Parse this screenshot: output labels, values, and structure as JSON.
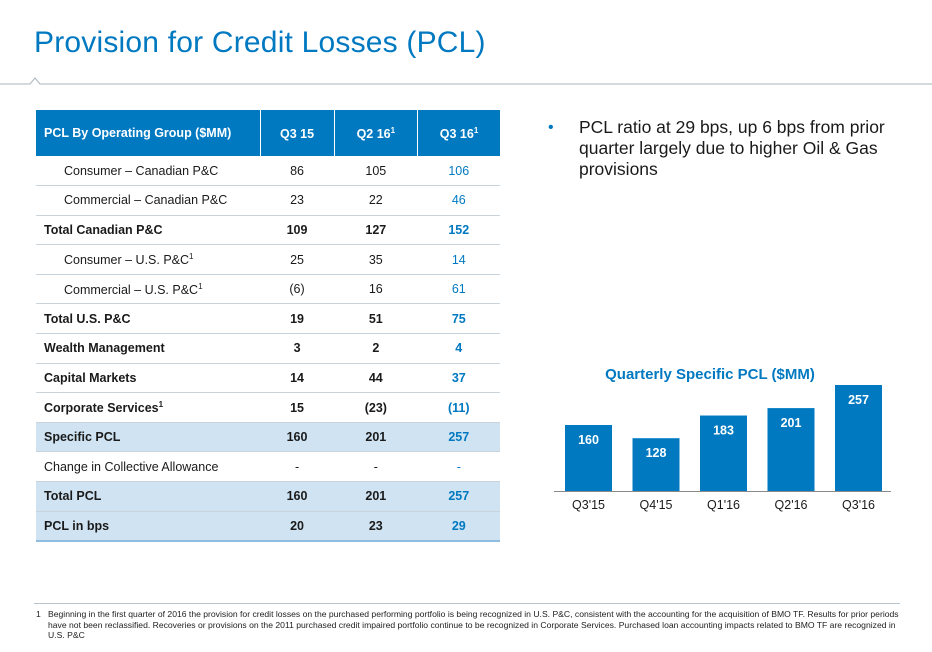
{
  "header": {
    "title": "Provision for Credit Losses (PCL)"
  },
  "table": {
    "header_label": "PCL By Operating Group ($MM)",
    "columns": [
      {
        "text": "Q3 15",
        "sup": ""
      },
      {
        "text": "Q2 16",
        "sup": "1"
      },
      {
        "text": "Q3 16",
        "sup": "1"
      }
    ],
    "rows": [
      {
        "label": "Consumer – Canadian P&C",
        "sup": "",
        "values": [
          "86",
          "105",
          "106"
        ],
        "bold": false,
        "indent": true,
        "shade": false
      },
      {
        "label": "Commercial – Canadian P&C",
        "sup": "",
        "values": [
          "23",
          "22",
          "46"
        ],
        "bold": false,
        "indent": true,
        "shade": false
      },
      {
        "label": "Total Canadian P&C",
        "sup": "",
        "values": [
          "109",
          "127",
          "152"
        ],
        "bold": true,
        "indent": false,
        "shade": false
      },
      {
        "label": "Consumer – U.S. P&C",
        "sup": "1",
        "values": [
          "25",
          "35",
          "14"
        ],
        "bold": false,
        "indent": true,
        "shade": false
      },
      {
        "label": "Commercial – U.S. P&C",
        "sup": "1",
        "values": [
          "(6)",
          "16",
          "61"
        ],
        "bold": false,
        "indent": true,
        "shade": false
      },
      {
        "label": "Total U.S. P&C",
        "sup": "",
        "values": [
          "19",
          "51",
          "75"
        ],
        "bold": true,
        "indent": false,
        "shade": false
      },
      {
        "label": "Wealth Management",
        "sup": "",
        "values": [
          "3",
          "2",
          "4"
        ],
        "bold": true,
        "indent": false,
        "shade": false
      },
      {
        "label": "Capital Markets",
        "sup": "",
        "values": [
          "14",
          "44",
          "37"
        ],
        "bold": true,
        "indent": false,
        "shade": false
      },
      {
        "label": "Corporate Services",
        "sup": "1",
        "values": [
          "15",
          "(23)",
          "(11)"
        ],
        "bold": true,
        "indent": false,
        "shade": false
      },
      {
        "label": "Specific PCL",
        "sup": "",
        "values": [
          "160",
          "201",
          "257"
        ],
        "bold": true,
        "indent": false,
        "shade": true
      },
      {
        "label": "Change in Collective Allowance",
        "sup": "",
        "values": [
          "-",
          "-",
          "-"
        ],
        "bold": false,
        "indent": false,
        "shade": false
      },
      {
        "label": "Total PCL",
        "sup": "",
        "values": [
          "160",
          "201",
          "257"
        ],
        "bold": true,
        "indent": false,
        "shade": true
      },
      {
        "label": "PCL in bps",
        "sup": "",
        "values": [
          "20",
          "23",
          "29"
        ],
        "bold": true,
        "indent": false,
        "shade": true
      }
    ]
  },
  "bullet": {
    "symbol": "•",
    "text": "PCL ratio at 29 bps, up 6 bps from prior quarter largely due to higher Oil & Gas provisions"
  },
  "chart_data": {
    "type": "bar",
    "title": "Quarterly Specific PCL ($MM)",
    "categories": [
      "Q3'15",
      "Q4'15",
      "Q1'16",
      "Q2'16",
      "Q3'16"
    ],
    "values": [
      160,
      128,
      183,
      201,
      257
    ],
    "xlabel": "",
    "ylabel": "",
    "ylim": [
      0,
      257
    ],
    "grid": false,
    "bar_color": "#0079c1"
  },
  "footnote": {
    "number": "1",
    "text": "Beginning in the first quarter of 2016 the provision for credit losses on the purchased performing portfolio is being recognized in U.S. P&C, consistent with the accounting for the acquisition of BMO TF. Results for prior periods have not been reclassified. Recoveries or provisions on the 2011 purchased credit impaired portfolio continue to be recognized in Corporate Services. Purchased loan accounting impacts related to BMO TF are recognized in U.S. P&C"
  },
  "colors": {
    "accent": "#0079c1",
    "shade": "#cfe3f2"
  }
}
